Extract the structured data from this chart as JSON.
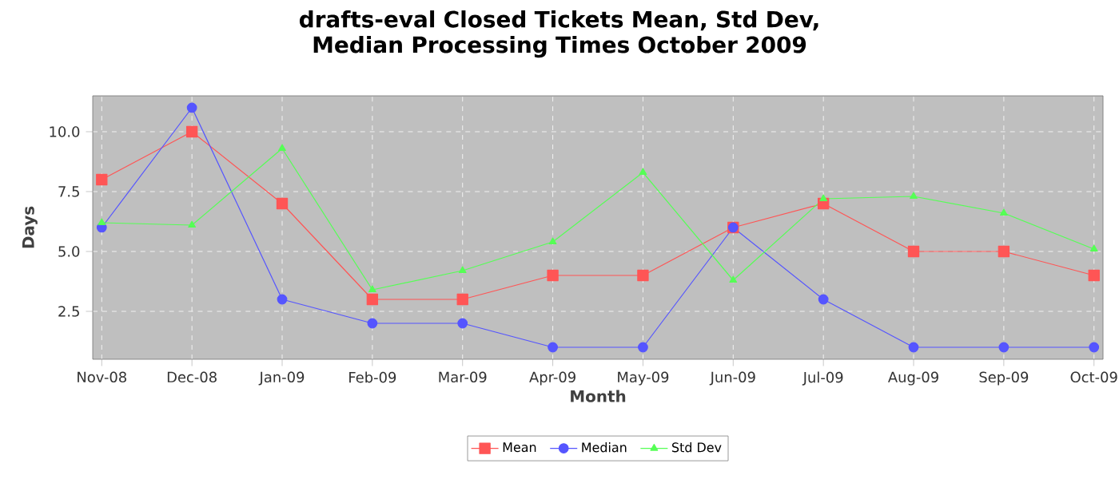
{
  "chart_data": {
    "type": "line",
    "title": "drafts-eval Closed Tickets Mean, Std Dev, Median Processing Times October 2009",
    "xlabel": "Month",
    "ylabel": "Days",
    "categories": [
      "Nov-08",
      "Dec-08",
      "Jan-09",
      "Feb-09",
      "Mar-09",
      "Apr-09",
      "May-09",
      "Jun-09",
      "Jul-09",
      "Aug-09",
      "Sep-09",
      "Oct-09"
    ],
    "series": [
      {
        "name": "Mean",
        "color": "#ff5555",
        "marker": "square",
        "values": [
          8,
          10,
          7,
          3,
          3,
          4,
          4,
          6,
          7,
          5,
          5,
          4
        ]
      },
      {
        "name": "Median",
        "color": "#5555ff",
        "marker": "circle",
        "values": [
          6,
          11,
          3,
          2,
          2,
          1,
          1,
          6,
          3,
          1,
          1,
          1
        ]
      },
      {
        "name": "Std Dev",
        "color": "#55ff55",
        "marker": "triangle",
        "values": [
          6.2,
          6.1,
          9.3,
          3.4,
          4.2,
          5.4,
          8.3,
          3.8,
          7.2,
          7.3,
          6.6,
          5.1
        ]
      }
    ],
    "ylim": [
      0.5,
      11.5
    ],
    "yticks": [
      {
        "value": 2.5,
        "label": "2.5"
      },
      {
        "value": 5,
        "label": "5.0"
      },
      {
        "value": 7.5,
        "label": "7.5"
      },
      {
        "value": 10,
        "label": "10.0"
      }
    ],
    "grid": true,
    "legend": "bottom"
  }
}
